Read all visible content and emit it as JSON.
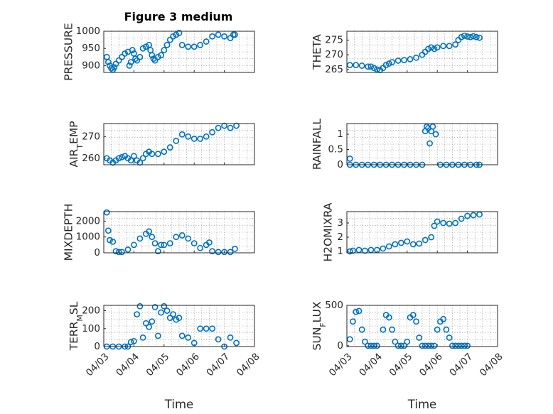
{
  "figure": {
    "title": "Figure 3 medium",
    "xlabel": "Time"
  },
  "chart_data": [
    {
      "type": "scatter",
      "ylabel": "PRESSURE",
      "ylim": [
        880,
        1000
      ],
      "yticks": [
        "1000",
        "950",
        "900"
      ],
      "xticks": [
        "04/03",
        "04/04",
        "04/05",
        "04/06",
        "04/07",
        "04/08"
      ],
      "xlim": [
        0,
        5
      ],
      "grid": true,
      "marker": "circle",
      "color": "#0072BD",
      "x": [
        0.1,
        0.15,
        0.2,
        0.25,
        0.3,
        0.35,
        0.4,
        0.5,
        0.6,
        0.7,
        0.8,
        0.85,
        0.9,
        0.95,
        1.0,
        1.05,
        1.1,
        1.2,
        1.3,
        1.4,
        1.5,
        1.55,
        1.6,
        1.65,
        1.7,
        1.8,
        1.9,
        2.0,
        2.1,
        2.2,
        2.3,
        2.4,
        2.5,
        2.6,
        2.8,
        3.0,
        3.2,
        3.4,
        3.6,
        3.8,
        4.0,
        4.2,
        4.3,
        4.35
      ],
      "y": [
        925,
        910,
        900,
        892,
        888,
        895,
        905,
        915,
        925,
        935,
        940,
        900,
        910,
        945,
        935,
        920,
        915,
        925,
        950,
        955,
        960,
        945,
        930,
        920,
        915,
        925,
        930,
        945,
        960,
        975,
        985,
        990,
        995,
        960,
        955,
        955,
        960,
        970,
        985,
        990,
        985,
        980,
        990,
        990
      ]
    },
    {
      "type": "scatter",
      "ylabel": "THETA",
      "ylim": [
        264,
        278
      ],
      "yticks": [
        "275",
        "270",
        "265"
      ],
      "xticks": [
        "04/03",
        "04/04",
        "04/05",
        "04/06",
        "04/07",
        "04/08"
      ],
      "xlim": [
        0,
        5
      ],
      "grid": true,
      "marker": "circle",
      "color": "#0072BD",
      "x": [
        0.1,
        0.3,
        0.5,
        0.7,
        0.8,
        0.9,
        1.0,
        1.1,
        1.2,
        1.3,
        1.4,
        1.5,
        1.7,
        1.9,
        2.1,
        2.3,
        2.5,
        2.6,
        2.7,
        2.8,
        2.9,
        3.0,
        3.2,
        3.4,
        3.6,
        3.7,
        3.8,
        3.9,
        4.0,
        4.1,
        4.2,
        4.3,
        4.4
      ],
      "y": [
        266.5,
        266.5,
        266.3,
        266,
        266,
        265.5,
        265,
        264.8,
        265.5,
        266.5,
        267,
        267.5,
        268,
        268.2,
        268.5,
        269,
        270,
        271,
        272,
        272.5,
        272,
        272.5,
        273,
        273,
        273.5,
        275,
        276,
        276.5,
        276.2,
        276,
        276.3,
        276,
        275.8
      ]
    },
    {
      "type": "scatter",
      "ylabel": "AIR_TEMP",
      "ylim": [
        257,
        276
      ],
      "yticks": [
        "270",
        "260"
      ],
      "xticks": [
        "04/03",
        "04/04",
        "04/05",
        "04/06",
        "04/07",
        "04/08"
      ],
      "xlim": [
        0,
        5
      ],
      "grid": true,
      "marker": "circle",
      "color": "#0072BD",
      "x": [
        0.1,
        0.2,
        0.3,
        0.4,
        0.5,
        0.6,
        0.7,
        0.8,
        0.9,
        1.0,
        1.1,
        1.2,
        1.3,
        1.4,
        1.5,
        1.6,
        1.8,
        2.0,
        2.2,
        2.4,
        2.6,
        2.8,
        3.0,
        3.2,
        3.4,
        3.6,
        3.8,
        4.0,
        4.2,
        4.4
      ],
      "y": [
        260,
        259,
        258,
        259,
        260,
        260.5,
        261,
        260,
        259,
        261,
        259,
        258,
        260,
        262,
        263,
        262,
        262,
        263,
        265,
        268,
        271,
        270,
        269,
        269,
        270,
        272,
        274,
        275,
        274,
        275
      ]
    },
    {
      "type": "scatter",
      "ylabel": "RAINFALL",
      "ylim": [
        0,
        1.35
      ],
      "yticks": [
        "1",
        "0.5",
        "0"
      ],
      "xticks": [
        "04/03",
        "04/04",
        "04/05",
        "04/06",
        "04/07",
        "04/08"
      ],
      "xlim": [
        0,
        5
      ],
      "grid": true,
      "marker": "circle",
      "color": "#0072BD",
      "x": [
        0.1,
        0.1,
        0.3,
        0.5,
        0.7,
        0.9,
        1.1,
        1.3,
        1.5,
        1.7,
        1.9,
        2.1,
        2.3,
        2.5,
        2.6,
        2.65,
        2.7,
        2.75,
        2.8,
        2.85,
        2.95,
        3.1,
        3.3,
        3.5,
        3.7,
        3.9,
        4.1,
        4.3,
        4.4
      ],
      "y": [
        0.2,
        0,
        0,
        0,
        0,
        0,
        0,
        0,
        0,
        0,
        0,
        0,
        0,
        0,
        1.1,
        1.25,
        1.2,
        0.7,
        1.1,
        1.25,
        1.0,
        0,
        0,
        0,
        0,
        0,
        0,
        0,
        0
      ]
    },
    {
      "type": "scatter",
      "ylabel": "MIXDEPTH",
      "ylim": [
        0,
        2600
      ],
      "yticks": [
        "2000",
        "1000",
        "0"
      ],
      "xticks": [
        "04/03",
        "04/04",
        "04/05",
        "04/06",
        "04/07",
        "04/08"
      ],
      "xlim": [
        0,
        5
      ],
      "grid": true,
      "marker": "circle",
      "color": "#0072BD",
      "x": [
        0.1,
        0.15,
        0.2,
        0.3,
        0.4,
        0.5,
        0.6,
        0.8,
        1.0,
        1.2,
        1.4,
        1.5,
        1.6,
        1.7,
        1.8,
        1.9,
        2.0,
        2.2,
        2.4,
        2.6,
        2.8,
        3.0,
        3.2,
        3.4,
        3.5,
        3.6,
        3.8,
        4.0,
        4.2,
        4.35
      ],
      "y": [
        2550,
        1400,
        800,
        700,
        100,
        50,
        50,
        200,
        500,
        900,
        1200,
        1350,
        1000,
        600,
        100,
        500,
        500,
        600,
        1000,
        1100,
        900,
        600,
        300,
        500,
        650,
        100,
        50,
        50,
        50,
        250
      ]
    },
    {
      "type": "scatter",
      "ylabel": "H2OMIXRA",
      "ylim": [
        0.9,
        3.8
      ],
      "yticks": [
        "3",
        "2",
        "1"
      ],
      "xticks": [
        "04/03",
        "04/04",
        "04/05",
        "04/06",
        "04/07",
        "04/08"
      ],
      "xlim": [
        0,
        5
      ],
      "grid": true,
      "marker": "circle",
      "color": "#0072BD",
      "x": [
        0.1,
        0.2,
        0.4,
        0.6,
        0.8,
        1.0,
        1.2,
        1.4,
        1.6,
        1.8,
        2.0,
        2.2,
        2.4,
        2.6,
        2.8,
        2.9,
        3.0,
        3.2,
        3.4,
        3.6,
        3.8,
        4.0,
        4.2,
        4.4
      ],
      "y": [
        1.0,
        1.05,
        1.1,
        1.05,
        1.1,
        1.1,
        1.2,
        1.35,
        1.5,
        1.6,
        1.7,
        1.5,
        1.55,
        1.8,
        2.0,
        2.8,
        3.1,
        3.0,
        2.95,
        3.0,
        3.3,
        3.5,
        3.55,
        3.6
      ]
    },
    {
      "type": "scatter",
      "ylabel": "TERR_MSL",
      "ylim": [
        0,
        230
      ],
      "yticks": [
        "200",
        "100",
        "0"
      ],
      "xticks": [
        "04/03",
        "04/04",
        "04/05",
        "04/06",
        "04/07",
        "04/08"
      ],
      "xlim": [
        0,
        5
      ],
      "grid": true,
      "marker": "circle",
      "color": "#0072BD",
      "x": [
        0.1,
        0.3,
        0.5,
        0.7,
        0.8,
        0.9,
        1.0,
        1.1,
        1.2,
        1.3,
        1.4,
        1.5,
        1.6,
        1.7,
        1.8,
        1.9,
        2.0,
        2.1,
        2.2,
        2.3,
        2.4,
        2.5,
        2.6,
        2.8,
        3.0,
        3.2,
        3.4,
        3.6,
        3.8,
        4.0,
        4.2,
        4.4
      ],
      "y": [
        0,
        0,
        0,
        0,
        0,
        25,
        30,
        180,
        225,
        50,
        130,
        110,
        140,
        220,
        60,
        190,
        225,
        200,
        160,
        180,
        150,
        160,
        60,
        50,
        20,
        100,
        100,
        100,
        40,
        0,
        50,
        20
      ]
    },
    {
      "type": "scatter",
      "ylabel": "SUN_FLUX",
      "ylim": [
        -10,
        500
      ],
      "yticks": [
        "500",
        "0"
      ],
      "xticks": [
        "04/03",
        "04/04",
        "04/05",
        "04/06",
        "04/07",
        "04/08"
      ],
      "xlim": [
        0,
        5
      ],
      "grid": true,
      "marker": "circle",
      "color": "#0072BD",
      "x": [
        0.1,
        0.2,
        0.3,
        0.4,
        0.5,
        0.6,
        0.7,
        0.8,
        0.9,
        1.0,
        1.2,
        1.3,
        1.4,
        1.5,
        1.6,
        1.7,
        1.8,
        1.9,
        2.0,
        2.1,
        2.2,
        2.3,
        2.4,
        2.5,
        2.6,
        2.7,
        2.8,
        2.9,
        3.0,
        3.1,
        3.2,
        3.3,
        3.4,
        3.5,
        3.6,
        3.7,
        3.8,
        3.9,
        4.0
      ],
      "y": [
        80,
        300,
        420,
        430,
        200,
        50,
        0,
        0,
        0,
        0,
        200,
        380,
        350,
        200,
        50,
        0,
        0,
        0,
        50,
        350,
        380,
        300,
        100,
        0,
        0,
        0,
        0,
        0,
        200,
        300,
        330,
        200,
        100,
        0,
        0,
        0,
        0,
        0,
        0
      ]
    }
  ]
}
